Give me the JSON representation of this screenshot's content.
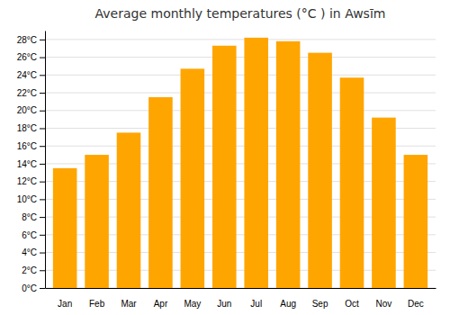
{
  "chart_data": {
    "type": "bar",
    "title": "Average monthly temperatures (°C ) in Awsīm",
    "categories": [
      "Jan",
      "Feb",
      "Mar",
      "Apr",
      "May",
      "Jun",
      "Jul",
      "Aug",
      "Sep",
      "Oct",
      "Nov",
      "Dec"
    ],
    "values": [
      13.5,
      15.0,
      17.5,
      21.5,
      24.7,
      27.3,
      28.2,
      27.8,
      26.5,
      23.7,
      19.2,
      15.0
    ],
    "color": "#FFA500",
    "ylim": [
      0,
      29
    ],
    "yticks": [
      {
        "value": 0,
        "label": "0°C"
      },
      {
        "value": 2,
        "label": "2°C"
      },
      {
        "value": 4,
        "label": "4°C"
      },
      {
        "value": 6,
        "label": "6°C"
      },
      {
        "value": 8,
        "label": "8°C"
      },
      {
        "value": 10,
        "label": "10°C"
      },
      {
        "value": 12,
        "label": "12°C"
      },
      {
        "value": 14,
        "label": "14°C"
      },
      {
        "value": 16,
        "label": "16°C"
      },
      {
        "value": 18,
        "label": "18°C"
      },
      {
        "value": 20,
        "label": "20°C"
      },
      {
        "value": 22,
        "label": "22°C"
      },
      {
        "value": 24,
        "label": "24°C"
      },
      {
        "value": 26,
        "label": "26°C"
      },
      {
        "value": 28,
        "label": "28°C"
      }
    ],
    "grid": true
  }
}
